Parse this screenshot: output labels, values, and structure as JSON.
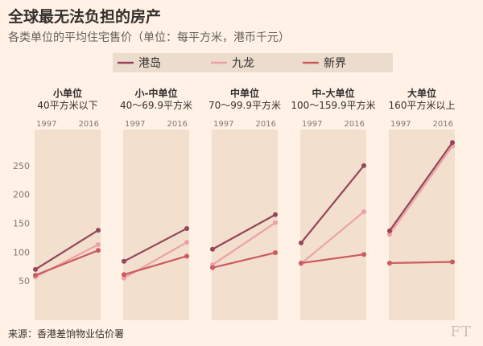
{
  "title": "全球最无法负担的房产",
  "subtitle": "各类单位的平均住宅售价（单位：每平方米，港币千元）",
  "source": "来源：香港差饷物业估价署",
  "logo": "FT",
  "colors": {
    "港岛": "#96455a",
    "九龙": "#eda1a6",
    "新界": "#cc5a5e",
    "panel": "#f2dfce",
    "legend_bg": "#ebdccd"
  },
  "chart_data": {
    "type": "line",
    "title": "全球最无法负担的房产",
    "subtitle": "各类单位的平均住宅售价（单位：每平方米，港币千元）",
    "x_tick_labels": [
      "1997",
      "2016"
    ],
    "y_ticks": [
      50,
      100,
      150,
      200,
      250
    ],
    "ylim": [
      0,
      300
    ],
    "grid": false,
    "legend": [
      "港岛",
      "九龙",
      "新界"
    ],
    "legend_position": "top",
    "panels": [
      {
        "line1": "小单位",
        "line2": "40平方米以下",
        "series": [
          {
            "name": "港岛",
            "values": [
              70,
              138
            ]
          },
          {
            "name": "九龙",
            "values": [
              57,
              113
            ]
          },
          {
            "name": "新界",
            "values": [
              60,
              103
            ]
          }
        ]
      },
      {
        "line1": "小-中单位",
        "line2": "40～69.9平方米",
        "series": [
          {
            "name": "港岛",
            "values": [
              84,
              141
            ]
          },
          {
            "name": "九龙",
            "values": [
              55,
              117
            ]
          },
          {
            "name": "新界",
            "values": [
              61,
              93
            ]
          }
        ]
      },
      {
        "line1": "中单位",
        "line2": "70～99.9平方米",
        "series": [
          {
            "name": "港岛",
            "values": [
              105,
              165
            ]
          },
          {
            "name": "九龙",
            "values": [
              78,
              151
            ]
          },
          {
            "name": "新界",
            "values": [
              73,
              99
            ]
          }
        ]
      },
      {
        "line1": "中-大单位",
        "line2": "100～159.9平方米",
        "series": [
          {
            "name": "港岛",
            "values": [
              116,
              250
            ]
          },
          {
            "name": "九龙",
            "values": [
              80,
              170
            ]
          },
          {
            "name": "新界",
            "values": [
              81,
              96
            ]
          }
        ]
      },
      {
        "line1": "大单位",
        "line2": "160平方米以上",
        "series": [
          {
            "name": "港岛",
            "values": [
              137,
              290
            ]
          },
          {
            "name": "九龙",
            "values": [
              131,
              284
            ]
          },
          {
            "name": "新界",
            "values": [
              81,
              83
            ]
          }
        ]
      }
    ]
  }
}
